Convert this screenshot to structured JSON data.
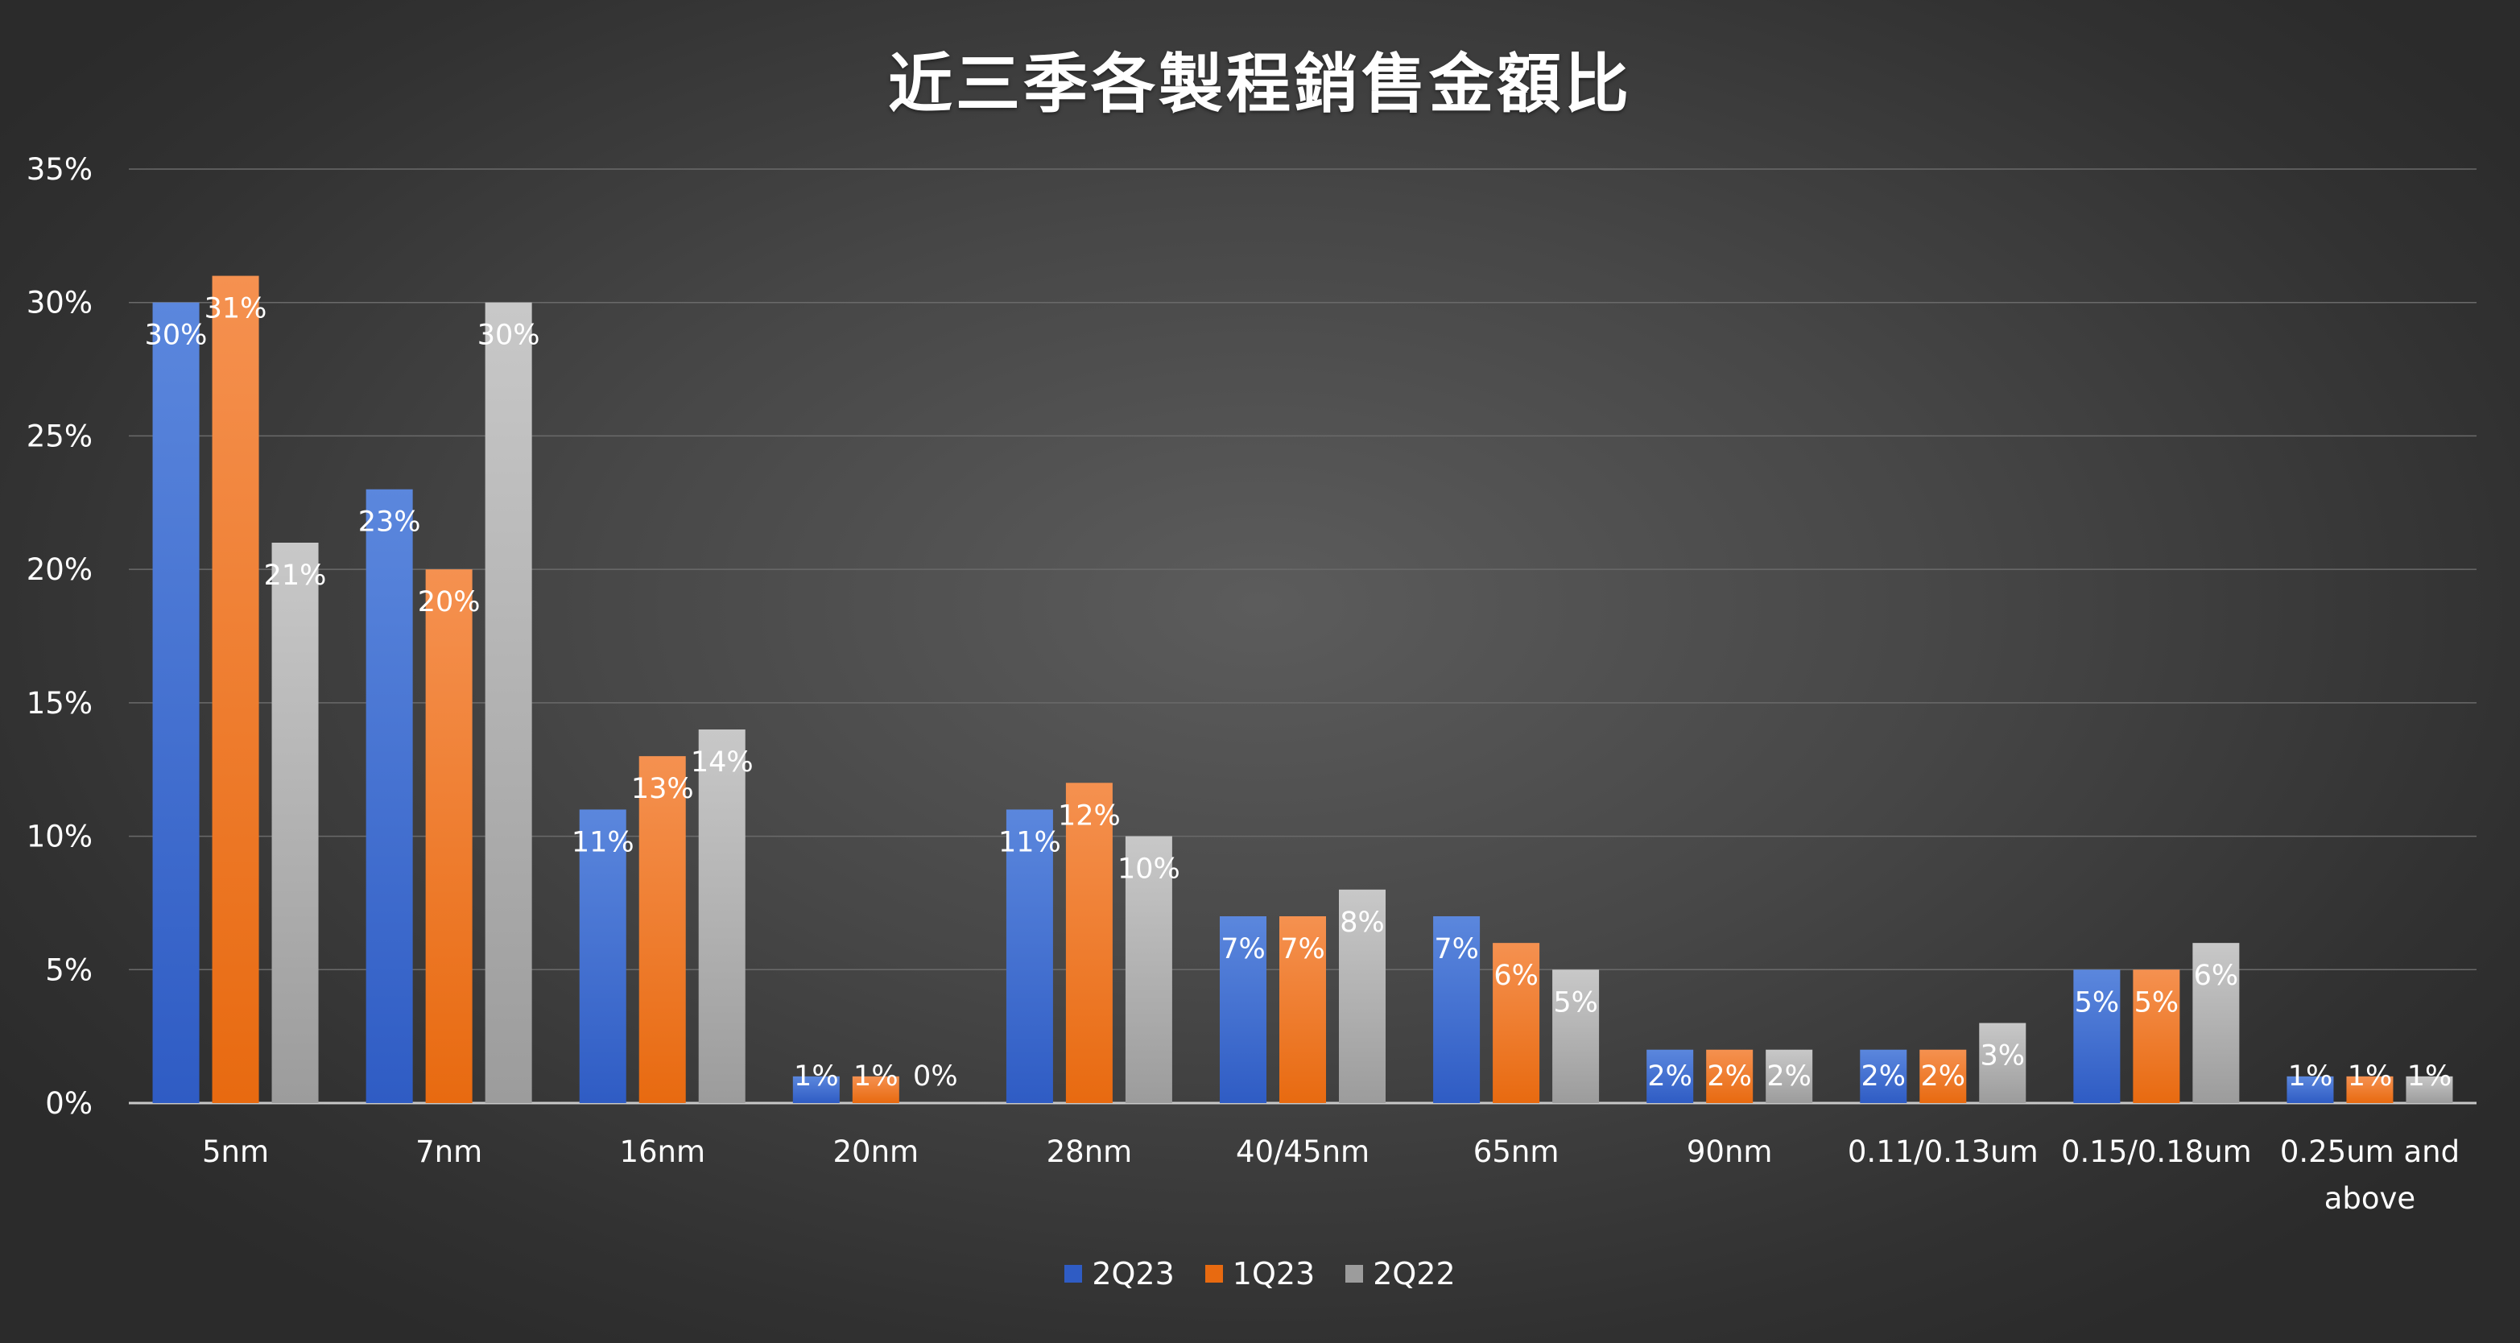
{
  "chart_data": {
    "type": "bar",
    "title": "近三季各製程銷售金額比",
    "categories": [
      "5nm",
      "7nm",
      "16nm",
      "20nm",
      "28nm",
      "40/45nm",
      "65nm",
      "90nm",
      "0.11/0.13um",
      "0.15/0.18um",
      "0.25um and above"
    ],
    "series": [
      {
        "name": "2Q23",
        "values": [
          30,
          23,
          11,
          1,
          11,
          7,
          7,
          2,
          2,
          5,
          1
        ],
        "labels": [
          "30%",
          "23%",
          "11%",
          "1%",
          "11%",
          "7%",
          "7%",
          "2%",
          "2%",
          "5%",
          "1%"
        ]
      },
      {
        "name": "1Q23",
        "values": [
          31,
          20,
          13,
          1,
          12,
          7,
          6,
          2,
          2,
          5,
          1
        ],
        "labels": [
          "31%",
          "20%",
          "13%",
          "1%",
          "12%",
          "7%",
          "6%",
          "2%",
          "2%",
          "5%",
          "1%"
        ]
      },
      {
        "name": "2Q22",
        "values": [
          21,
          30,
          14,
          0,
          10,
          8,
          5,
          2,
          3,
          6,
          1
        ],
        "labels": [
          "21%",
          "30%",
          "14%",
          "0%",
          "10%",
          "8%",
          "5%",
          "2%",
          "3%",
          "6%",
          "1%"
        ]
      }
    ],
    "ylim": [
      0,
      35
    ],
    "yticks": [
      0,
      5,
      10,
      15,
      20,
      25,
      30,
      35
    ],
    "ytick_labels": [
      "0%",
      "5%",
      "10%",
      "15%",
      "20%",
      "25%",
      "30%",
      "35%"
    ],
    "grid": true,
    "legend_position": "bottom",
    "colors": {
      "2Q23": [
        "#5b87dd",
        "#2f5cc4"
      ],
      "1Q23": [
        "#f59150",
        "#e86a10"
      ],
      "2Q22": [
        "#c8c8c8",
        "#9c9c9c"
      ]
    }
  }
}
